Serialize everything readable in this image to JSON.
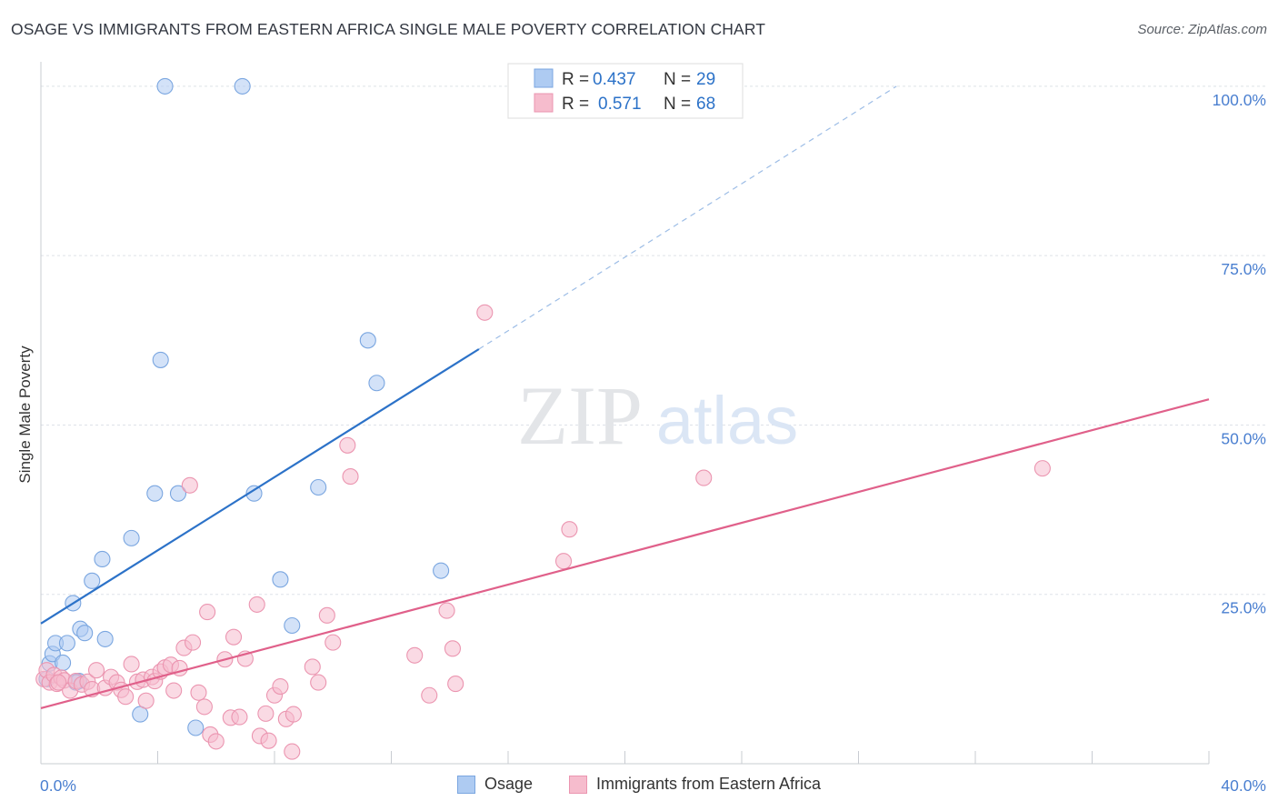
{
  "header": {
    "title": "OSAGE VS IMMIGRANTS FROM EASTERN AFRICA SINGLE MALE POVERTY CORRELATION CHART",
    "source": "Source: ZipAtlas.com"
  },
  "watermark": {
    "zip": "ZIP",
    "atlas": "atlas"
  },
  "colors": {
    "blue_fill": "#aecbf2",
    "blue_stroke": "#7aa6e0",
    "blue_line": "#2c72c8",
    "pink_fill": "#f6bccd",
    "pink_stroke": "#eb95b0",
    "pink_line": "#e0608a",
    "axis_text": "#4a7fd0",
    "grid": "#dde2e8"
  },
  "legend_top": {
    "rows": [
      {
        "r_label": "R =",
        "r_value": "0.437",
        "n_label": "N =",
        "n_value": "29"
      },
      {
        "r_label": "R =",
        "r_value": "0.571",
        "n_label": "N =",
        "n_value": "68"
      }
    ]
  },
  "legend_bottom": {
    "items": [
      "Osage",
      "Immigrants from Eastern Africa"
    ]
  },
  "chart_data": {
    "type": "scatter",
    "title": "OSAGE VS IMMIGRANTS FROM EASTERN AFRICA SINGLE MALE POVERTY CORRELATION CHART",
    "xlabel": "",
    "ylabel": "Single Male Poverty",
    "xlim": [
      0,
      40
    ],
    "ylim": [
      0,
      102
    ],
    "x_tick_labels": [
      {
        "x": 0,
        "label": "0.0%"
      },
      {
        "x": 40,
        "label": "40.0%"
      }
    ],
    "y_tick_labels": [
      {
        "y": 25,
        "label": "25.0%"
      },
      {
        "y": 50,
        "label": "50.0%"
      },
      {
        "y": 75,
        "label": "75.0%"
      },
      {
        "y": 100,
        "label": "100.0%"
      }
    ],
    "series": [
      {
        "name": "Osage",
        "r": 0.437,
        "n": 29,
        "trend": {
          "x0": 0,
          "y0": 20.7,
          "x1": 15,
          "y1": 61.2,
          "dash_to_x": 29.3,
          "dash_to_y": 100
        },
        "points": [
          [
            0.2,
            12.5
          ],
          [
            0.3,
            14.8
          ],
          [
            0.4,
            16.2
          ],
          [
            0.5,
            17.8
          ],
          [
            0.75,
            14.9
          ],
          [
            0.9,
            17.8
          ],
          [
            1.1,
            23.7
          ],
          [
            1.3,
            12.2
          ],
          [
            1.35,
            19.9
          ],
          [
            1.5,
            19.3
          ],
          [
            1.75,
            27.0
          ],
          [
            2.1,
            30.2
          ],
          [
            2.2,
            18.4
          ],
          [
            3.1,
            33.3
          ],
          [
            3.4,
            7.3
          ],
          [
            3.9,
            39.9
          ],
          [
            4.1,
            59.6
          ],
          [
            4.25,
            100.0
          ],
          [
            4.7,
            39.9
          ],
          [
            5.3,
            5.3
          ],
          [
            6.9,
            100.0
          ],
          [
            7.3,
            39.9
          ],
          [
            8.2,
            27.2
          ],
          [
            8.6,
            20.4
          ],
          [
            9.5,
            40.8
          ],
          [
            11.2,
            62.5
          ],
          [
            11.5,
            56.2
          ],
          [
            13.7,
            28.5
          ],
          [
            1.2,
            12.0
          ]
        ]
      },
      {
        "name": "Immigrants from Eastern Africa",
        "r": 0.571,
        "n": 68,
        "trend": {
          "x0": 0,
          "y0": 8.2,
          "x1": 40,
          "y1": 53.8
        },
        "points": [
          [
            0.1,
            12.5
          ],
          [
            0.2,
            13.8
          ],
          [
            0.3,
            12.0
          ],
          [
            0.45,
            13.1
          ],
          [
            0.55,
            11.8
          ],
          [
            0.7,
            12.7
          ],
          [
            0.8,
            12.3
          ],
          [
            1.0,
            10.8
          ],
          [
            1.2,
            12.2
          ],
          [
            1.4,
            11.7
          ],
          [
            1.6,
            12.1
          ],
          [
            1.75,
            11.0
          ],
          [
            1.9,
            13.8
          ],
          [
            2.2,
            11.2
          ],
          [
            2.4,
            12.8
          ],
          [
            2.6,
            12.0
          ],
          [
            2.75,
            10.9
          ],
          [
            2.9,
            9.9
          ],
          [
            3.1,
            14.7
          ],
          [
            3.3,
            12.1
          ],
          [
            3.5,
            12.4
          ],
          [
            3.6,
            9.3
          ],
          [
            3.8,
            12.8
          ],
          [
            3.9,
            12.2
          ],
          [
            4.1,
            13.6
          ],
          [
            4.25,
            14.2
          ],
          [
            4.45,
            14.6
          ],
          [
            4.55,
            10.8
          ],
          [
            4.75,
            14.1
          ],
          [
            4.9,
            17.1
          ],
          [
            5.1,
            41.1
          ],
          [
            5.2,
            17.9
          ],
          [
            5.4,
            10.5
          ],
          [
            5.6,
            8.4
          ],
          [
            5.7,
            22.4
          ],
          [
            5.8,
            4.3
          ],
          [
            6.0,
            3.3
          ],
          [
            6.3,
            15.4
          ],
          [
            6.5,
            6.8
          ],
          [
            6.6,
            18.7
          ],
          [
            6.8,
            6.9
          ],
          [
            7.0,
            15.5
          ],
          [
            7.4,
            23.5
          ],
          [
            7.5,
            4.1
          ],
          [
            7.7,
            7.4
          ],
          [
            7.8,
            3.4
          ],
          [
            8.0,
            10.1
          ],
          [
            8.2,
            11.4
          ],
          [
            8.4,
            6.6
          ],
          [
            8.6,
            1.8
          ],
          [
            8.65,
            7.3
          ],
          [
            9.3,
            14.3
          ],
          [
            9.5,
            12.0
          ],
          [
            9.8,
            21.9
          ],
          [
            10.0,
            17.9
          ],
          [
            10.5,
            47.0
          ],
          [
            10.6,
            42.4
          ],
          [
            12.8,
            16.0
          ],
          [
            13.3,
            10.1
          ],
          [
            13.9,
            22.6
          ],
          [
            14.1,
            17.0
          ],
          [
            14.2,
            11.8
          ],
          [
            15.2,
            66.6
          ],
          [
            17.9,
            29.9
          ],
          [
            18.1,
            34.6
          ],
          [
            22.7,
            42.2
          ],
          [
            34.3,
            43.6
          ],
          [
            0.6,
            12.0
          ]
        ]
      }
    ]
  }
}
